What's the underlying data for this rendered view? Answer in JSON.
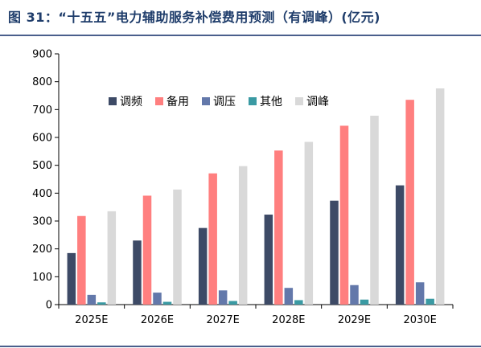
{
  "title": "图 31：“十五五”电力辅助服务补偿费用预测（有调峰）(亿元)",
  "colors": {
    "title": "#1f3d6b",
    "rule": "#4a5f8c"
  },
  "chart_data": {
    "type": "bar",
    "categories": [
      "2025E",
      "2026E",
      "2027E",
      "2028E",
      "2029E",
      "2030E"
    ],
    "ylim": [
      0,
      900
    ],
    "yticks": [
      0,
      100,
      200,
      300,
      400,
      500,
      600,
      700,
      800,
      900
    ],
    "grid": false,
    "legend_position": "top",
    "series": [
      {
        "name": "调频",
        "color": "#3d4a66",
        "values": [
          185,
          230,
          275,
          323,
          373,
          428
        ]
      },
      {
        "name": "备用",
        "color": "#ff7f7f",
        "values": [
          318,
          391,
          471,
          553,
          642,
          735
        ]
      },
      {
        "name": "调压",
        "color": "#6378aa",
        "values": [
          35,
          43,
          51,
          60,
          70,
          80
        ]
      },
      {
        "name": "其他",
        "color": "#3a9aa3",
        "values": [
          8,
          10,
          13,
          16,
          18,
          21
        ]
      },
      {
        "name": "调峰",
        "color": "#d9d9d9",
        "values": [
          335,
          413,
          497,
          584,
          678,
          776
        ]
      }
    ]
  }
}
